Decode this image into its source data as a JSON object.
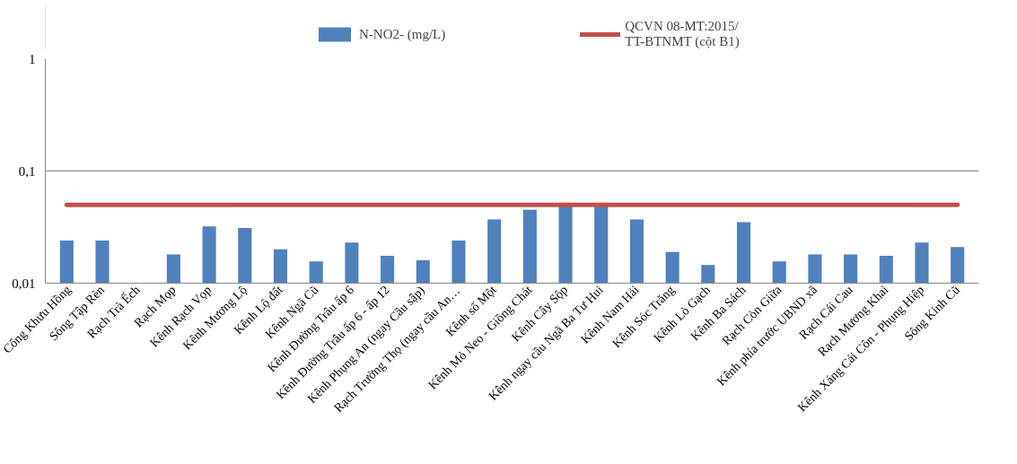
{
  "chart_data": {
    "type": "bar",
    "log": "y",
    "grid": "y",
    "legend": "top",
    "categories": [
      "Cống Khưu Hồng",
      "Sông Tập Rèn",
      "Rạch Trà Ếch",
      "Rạch Mọp",
      "Kênh Rạch Vọp",
      "Kênh Mương Lộ",
      "Kênh Lộ đất",
      "Kênh Ngã Cũ",
      "Kênh Đường Trâu ấp 6",
      "Kênh Đường Trâu ấp 6 - ấp 12",
      "Kênh Phụng An (ngay Cầu sập)",
      "Rạch Trường Thọ (ngay cầu An…",
      "Kênh số Một",
      "Kênh Mỏ Neo - Giồng Chát",
      "Kênh Cây Sộp",
      "Kênh ngay cầu Ngã Ba Tư Hui",
      "Kênh Nam Hải",
      "Kênh Sóc Trăng",
      "Kênh Lò Gạch",
      "Kênh Ba Sách",
      "Rạch Còn Giữa",
      "Kênh phía trước UBND xã",
      "Rạch Cái Cau",
      "Rạch Mương Khai",
      "Kênh Xáng Cái Côn - Phụng Hiệp",
      "Sông Kinh Cũ"
    ],
    "ylim": [
      0.01,
      1
    ],
    "yticks": [
      {
        "value": 0.01,
        "label": "0,01"
      },
      {
        "value": 0.1,
        "label": "0,1"
      },
      {
        "value": 1,
        "label": "1"
      }
    ],
    "series": [
      {
        "name": "N-NO2- (mg/L)",
        "color": "#4f81bd",
        "values": [
          0.024,
          0.024,
          null,
          0.018,
          0.032,
          0.031,
          0.02,
          0.0156,
          0.023,
          0.0175,
          0.016,
          0.024,
          0.037,
          0.045,
          0.05,
          0.05,
          0.037,
          0.019,
          0.0145,
          0.035,
          0.0156,
          0.018,
          0.018,
          0.0175,
          0.023,
          0.021
        ]
      },
      {
        "name": "QCVN 08-MT:2015/\nTT-BTNMT (cột B1)",
        "type": "line",
        "color": "#c0504d",
        "values": [
          0.05,
          0.05,
          0.05,
          0.05,
          0.05,
          0.05,
          0.05,
          0.05,
          0.05,
          0.05,
          0.05,
          0.05,
          0.05,
          0.05,
          0.05,
          0.05,
          0.05,
          0.05,
          0.05,
          0.05,
          0.05,
          0.05,
          0.05,
          0.05,
          0.05,
          0.05
        ]
      }
    ]
  }
}
